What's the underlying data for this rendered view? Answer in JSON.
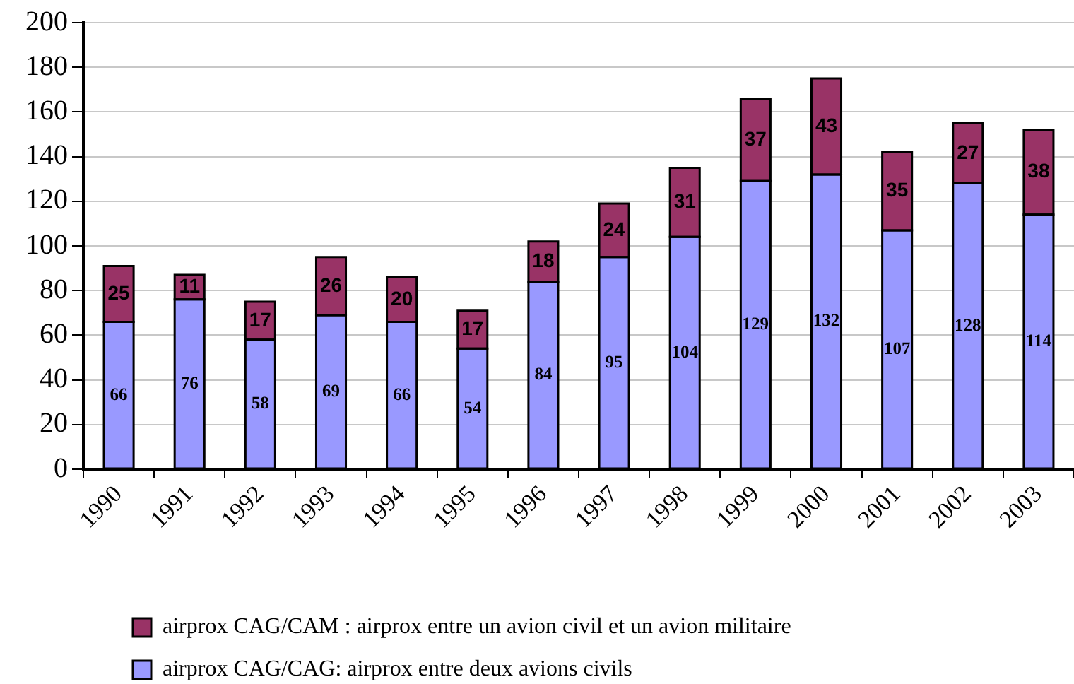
{
  "chart_data": {
    "type": "bar",
    "categories": [
      "1990",
      "1991",
      "1992",
      "1993",
      "1994",
      "1995",
      "1996",
      "1997",
      "1998",
      "1999",
      "2000",
      "2001",
      "2002",
      "2003"
    ],
    "series": [
      {
        "name": "airprox CAG/CAG: airprox entre deux avions civils",
        "color": "#9999ff",
        "values": [
          66,
          76,
          58,
          69,
          66,
          54,
          84,
          95,
          104,
          129,
          132,
          107,
          128,
          114
        ]
      },
      {
        "name": "airprox CAG/CAM : airprox entre un avion civil et un avion militaire",
        "color": "#993366",
        "values": [
          25,
          11,
          17,
          26,
          20,
          17,
          18,
          24,
          31,
          37,
          43,
          35,
          27,
          38
        ]
      }
    ],
    "stacked": true,
    "ylim": [
      0,
      200
    ],
    "yticks": [
      0,
      20,
      40,
      60,
      80,
      100,
      120,
      140,
      160,
      180,
      200
    ],
    "grid": "y",
    "legend": "bottom",
    "data_labels": true
  }
}
